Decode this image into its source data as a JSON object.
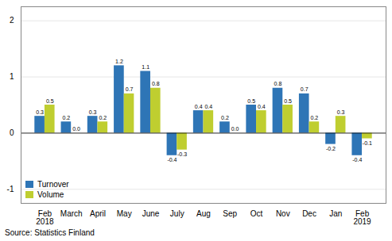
{
  "chart_data": {
    "type": "bar",
    "categories": [
      "Feb\n2018",
      "March",
      "April",
      "May",
      "June",
      "July",
      "Aug",
      "Sep",
      "Oct",
      "Nov",
      "Dec",
      "Jan",
      "Feb\n2019"
    ],
    "series": [
      {
        "name": "Turnover",
        "color": "#2E75B6",
        "values": [
          0.3,
          0.2,
          0.3,
          1.2,
          1.1,
          -0.4,
          0.4,
          0.2,
          0.5,
          0.8,
          0.7,
          -0.2,
          -0.4
        ]
      },
      {
        "name": "Volume",
        "color": "#BFCE30",
        "values": [
          0.5,
          0.0,
          0.2,
          0.7,
          0.8,
          -0.3,
          0.4,
          0.0,
          0.4,
          0.5,
          0.2,
          0.3,
          -0.1
        ],
        "value_labels": [
          "0.5",
          "0.0",
          "0.2",
          "0.7",
          "0.8",
          "-0.3",
          "0.4",
          "0.0",
          "0.4",
          "0.5",
          "0.2",
          "0.3",
          "-0.1"
        ]
      }
    ],
    "ylim": [
      -1.25,
      2.25
    ],
    "yticks": [
      -1,
      0,
      1,
      2
    ],
    "grid": true,
    "data_labels": true,
    "legend": "lower left",
    "annotations": [
      "Source: Statistics Finland"
    ]
  }
}
